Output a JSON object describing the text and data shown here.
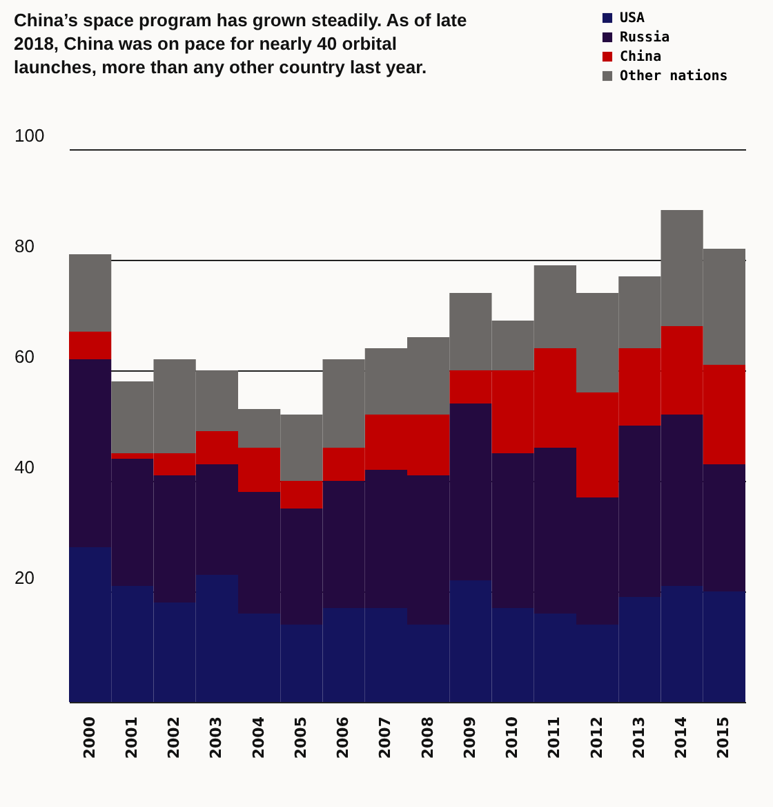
{
  "chart_data": {
    "type": "bar",
    "stacked": true,
    "title": "China’s space program has grown steadily. As of late 2018, China was on pace for nearly 40 orbital launches, more than any other country last year.",
    "categories": [
      "2000",
      "2001",
      "2002",
      "2003",
      "2004",
      "2005",
      "2006",
      "2007",
      "2008",
      "2009",
      "2010",
      "2011",
      "2012",
      "2013",
      "2014",
      "2015"
    ],
    "series": [
      {
        "name": "USA",
        "color": "#14145e",
        "values": [
          28,
          21,
          18,
          23,
          16,
          14,
          17,
          17,
          14,
          22,
          17,
          16,
          14,
          19,
          21,
          20
        ]
      },
      {
        "name": "Russia",
        "color": "#240a40",
        "values": [
          34,
          23,
          23,
          20,
          22,
          21,
          23,
          25,
          27,
          32,
          28,
          30,
          23,
          31,
          31,
          23
        ]
      },
      {
        "name": "China",
        "color": "#c00000",
        "values": [
          5,
          1,
          4,
          6,
          8,
          5,
          6,
          10,
          11,
          6,
          15,
          18,
          19,
          14,
          16,
          18
        ]
      },
      {
        "name": "Other nations",
        "color": "#6b6866",
        "values": [
          14,
          13,
          17,
          11,
          7,
          12,
          16,
          12,
          14,
          14,
          9,
          15,
          18,
          13,
          21,
          21
        ]
      }
    ],
    "ylim": [
      0,
      100
    ],
    "yticks": [
      20,
      40,
      60,
      80,
      100
    ],
    "grid": "y",
    "legend": "top right"
  }
}
